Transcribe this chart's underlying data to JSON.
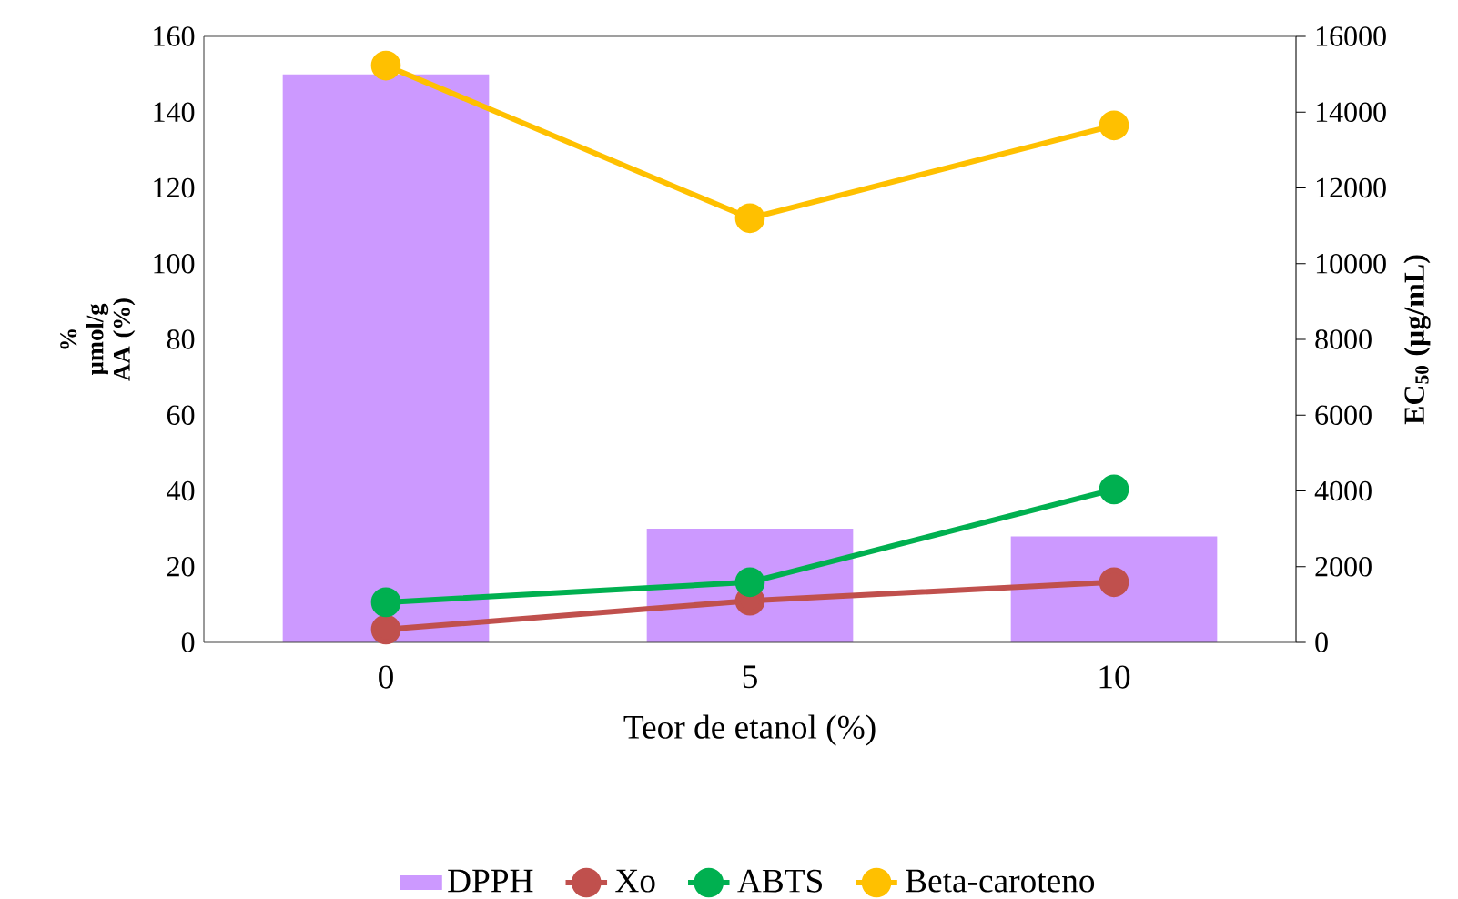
{
  "chart_data": {
    "type": "bar",
    "xlabel": "Teor de etanol (%)",
    "ylabel": "% µmol/g AA (%)",
    "y2label": "EC$_{50}$ (µg/mL)",
    "categories": [
      "0",
      "5",
      "10"
    ],
    "series": [
      {
        "name": "DPPH",
        "axis": "y2",
        "color": "#cc99ff",
        "values": [
          15000,
          3000,
          2800
        ]
      },
      {
        "name": "Xo",
        "type": "line",
        "axis": "y",
        "color": "#c0504d",
        "values": [
          3.4,
          11,
          15.9
        ]
      },
      {
        "name": "ABTS",
        "type": "line",
        "axis": "y",
        "color": "#00b050",
        "values": [
          10.6,
          15.9,
          40.4
        ]
      },
      {
        "name": "Beta-caroteno",
        "type": "line",
        "axis": "y",
        "color": "#ffc000",
        "values": [
          152.3,
          112,
          136.5
        ]
      }
    ],
    "ylim": [
      0,
      160
    ],
    "yticks": [
      0,
      20,
      40,
      60,
      80,
      100,
      120,
      140,
      160
    ],
    "y2lim": [
      0,
      16000
    ],
    "y2ticks": [
      0,
      2000,
      4000,
      6000,
      8000,
      10000,
      12000,
      14000,
      16000
    ],
    "marker": "circle",
    "line_style": "solid",
    "legend": "bottom"
  }
}
